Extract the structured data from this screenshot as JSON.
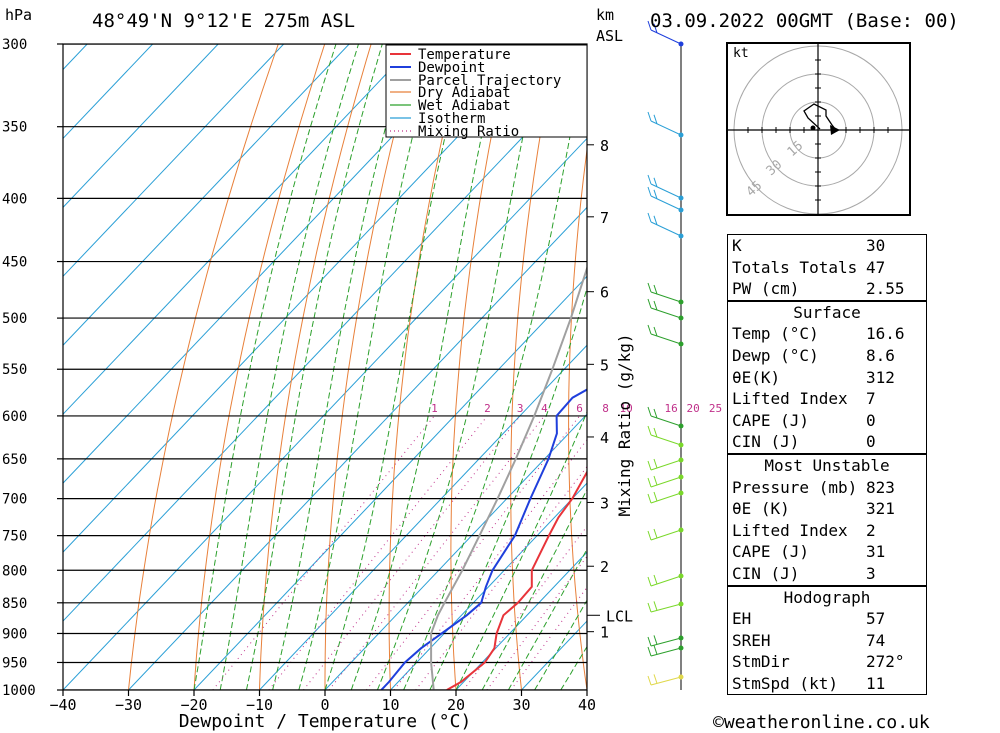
{
  "header": {
    "pressure_unit": "hPa",
    "location": "48°49'N  9°12'E  275m  ASL",
    "height_unit_line1": "km",
    "height_unit_line2": "ASL",
    "datetime": "03.09.2022  00GMT  (Base: 00)"
  },
  "chart_data": {
    "type": "line",
    "title": "48°49'N  9°12'E  275m  ASL",
    "xlabel": "Dewpoint / Temperature (°C)",
    "ylabel": "hPa",
    "right_label": "Mixing Ratio (g/kg)",
    "xlim": [
      -40,
      40
    ],
    "ylim": [
      1000,
      300
    ],
    "log_y": true,
    "skew": true,
    "x_ticks": [
      "−40",
      "−30",
      "−20",
      "−10",
      "0",
      "10",
      "20",
      "30",
      "40"
    ],
    "x_tick_values": [
      -40,
      -30,
      -20,
      -10,
      0,
      10,
      20,
      30,
      40
    ],
    "pressure_levels": [
      300,
      350,
      400,
      450,
      500,
      550,
      600,
      650,
      700,
      750,
      800,
      850,
      900,
      950,
      1000
    ],
    "height_ticks": [
      {
        "label": "8",
        "p": 362
      },
      {
        "label": "7",
        "p": 414
      },
      {
        "label": "6",
        "p": 476
      },
      {
        "label": "5",
        "p": 545
      },
      {
        "label": "4",
        "p": 624
      },
      {
        "label": "3",
        "p": 705
      },
      {
        "label": "2",
        "p": 794
      },
      {
        "label": "1",
        "p": 897
      }
    ],
    "lcl": {
      "label": "LCL",
      "p": 870
    },
    "mixing_ratio_labels": [
      "1",
      "2",
      "3",
      "4",
      "6",
      "8",
      "10",
      "16",
      "20",
      "25"
    ],
    "mixing_ratio_values": [
      1,
      2,
      3,
      4,
      6,
      8,
      10,
      16,
      20,
      25
    ],
    "legend": [
      "Temperature",
      "Dewpoint",
      "Parcel Trajectory",
      "Dry Adiabat",
      "Wet Adiabat",
      "Isotherm",
      "Mixing Ratio"
    ],
    "legend_placement": "top-right",
    "colors": {
      "temperature": "#e8343a",
      "dewpoint": "#1f3fdc",
      "parcel": "#a0a0a0",
      "dry_adiabat": "#e8803a",
      "wet_adiabat": "#2ca02c",
      "isotherm": "#2a9fd6",
      "mixing_ratio": "#c0308a"
    },
    "series": [
      {
        "name": "Temperature",
        "points": [
          [
            1000,
            18.6
          ],
          [
            985,
            19.6
          ],
          [
            950,
            20.4
          ],
          [
            925,
            19.8
          ],
          [
            900,
            18.0
          ],
          [
            870,
            16.4
          ],
          [
            850,
            16.8
          ],
          [
            825,
            16.6
          ],
          [
            800,
            14.2
          ],
          [
            750,
            11.8
          ],
          [
            725,
            10.6
          ],
          [
            700,
            10.0
          ],
          [
            650,
            7.6
          ],
          [
            600,
            5.8
          ],
          [
            550,
            2.8
          ],
          [
            500,
            -0.8
          ],
          [
            480,
            -2.6
          ],
          [
            450,
            -6.6
          ],
          [
            400,
            -13.2
          ],
          [
            350,
            -20.8
          ],
          [
            330,
            -24.2
          ],
          [
            300,
            -29.2
          ]
        ]
      },
      {
        "name": "Dewpoint",
        "points": [
          [
            1000,
            8.6
          ],
          [
            985,
            8.6
          ],
          [
            950,
            8.2
          ],
          [
            925,
            8.6
          ],
          [
            900,
            9.6
          ],
          [
            870,
            10.8
          ],
          [
            850,
            11.2
          ],
          [
            825,
            9.6
          ],
          [
            800,
            8.2
          ],
          [
            750,
            6.6
          ],
          [
            700,
            3.6
          ],
          [
            650,
            0.6
          ],
          [
            620,
            -1.8
          ],
          [
            600,
            -4.4
          ],
          [
            580,
            -4.6
          ],
          [
            550,
            -1.0
          ],
          [
            520,
            -5.2
          ],
          [
            500,
            -7.8
          ],
          [
            480,
            -9.2
          ],
          [
            460,
            -10.2
          ],
          [
            450,
            -13.0
          ],
          [
            440,
            -20.0
          ],
          [
            400,
            -22.6
          ],
          [
            385,
            -24.6
          ],
          [
            350,
            -13.0
          ],
          [
            345,
            -26.2
          ],
          [
            340,
            -22.0
          ],
          [
            330,
            -12.0
          ],
          [
            325,
            -28.0
          ],
          [
            310,
            -17.0
          ],
          [
            300,
            -23.0
          ]
        ]
      },
      {
        "name": "Parcel Trajectory",
        "points": [
          [
            1000,
            16.6
          ],
          [
            950,
            12.2
          ],
          [
            900,
            8.0
          ],
          [
            870,
            6.4
          ],
          [
            850,
            5.6
          ],
          [
            800,
            3.6
          ],
          [
            750,
            1.2
          ],
          [
            700,
            -1.4
          ],
          [
            650,
            -4.4
          ],
          [
            600,
            -7.8
          ],
          [
            550,
            -11.8
          ],
          [
            500,
            -16.4
          ],
          [
            450,
            -21.8
          ],
          [
            400,
            -28.4
          ],
          [
            350,
            -36.4
          ],
          [
            300,
            -46.0
          ]
        ]
      }
    ]
  },
  "wind": {
    "unit": "kt",
    "hodograph_rings": [
      "15",
      "30",
      "45"
    ]
  },
  "indices": {
    "k_label": "K",
    "k": "30",
    "tt_label": "Totals Totals",
    "tt": "47",
    "pw_label": "PW (cm)",
    "pw": "2.55"
  },
  "surface": {
    "title": "Surface",
    "temp_label": "Temp (°C)",
    "temp": "16.6",
    "dewp_label": "Dewp (°C)",
    "dewp": "8.6",
    "theta_e_label": "θE(K)",
    "theta_e": "312",
    "li_label": "Lifted Index",
    "li": "7",
    "cape_label": "CAPE (J)",
    "cape": "0",
    "cin_label": "CIN (J)",
    "cin": "0"
  },
  "most_unstable": {
    "title": "Most Unstable",
    "pressure_label": "Pressure (mb)",
    "pressure": "823",
    "theta_e_label": "θE (K)",
    "theta_e": "321",
    "li_label": "Lifted Index",
    "li": "2",
    "cape_label": "CAPE (J)",
    "cape": "31",
    "cin_label": "CIN (J)",
    "cin": "3"
  },
  "hodograph": {
    "title": "Hodograph",
    "eh_label": "EH",
    "eh": "57",
    "srh_label": "SREH",
    "srh": "74",
    "stmdir_label": "StmDir",
    "stmdir": "272°",
    "stmspd_label": "StmSpd (kt)",
    "stmspd": "11"
  },
  "footer": {
    "copyright": "©weatheronline.co.uk"
  }
}
